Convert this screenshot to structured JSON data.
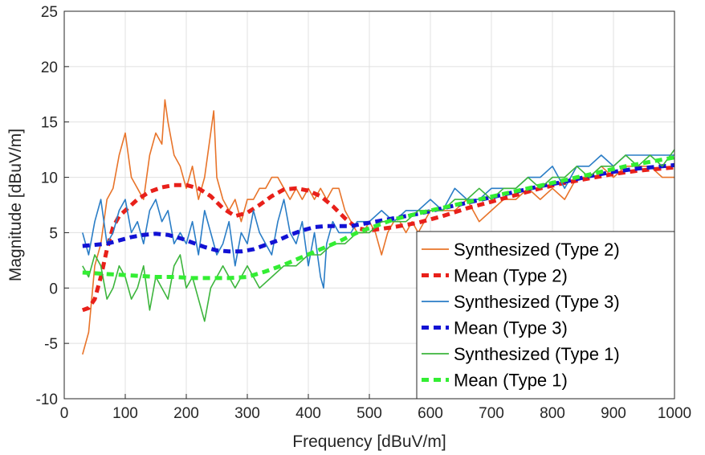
{
  "chart_data": {
    "type": "line",
    "title": "",
    "xlabel": "Frequency [dBuV/m]",
    "ylabel": "Magnitude [dBuV/m]",
    "xlim": [
      0,
      1000
    ],
    "ylim": [
      -10,
      25
    ],
    "xticks": [
      0,
      100,
      200,
      300,
      400,
      500,
      600,
      700,
      800,
      900,
      1000
    ],
    "yticks": [
      -10,
      -5,
      0,
      5,
      10,
      15,
      20,
      25
    ],
    "grid": true,
    "legend_position": "bottom-right",
    "series": [
      {
        "name": "Synthesized (Type 2)",
        "color": "#E8742A",
        "style": "solid",
        "x": [
          30,
          40,
          50,
          60,
          70,
          80,
          90,
          100,
          110,
          120,
          130,
          140,
          150,
          160,
          165,
          170,
          180,
          190,
          200,
          210,
          220,
          230,
          240,
          245,
          250,
          260,
          270,
          280,
          290,
          300,
          310,
          320,
          330,
          340,
          350,
          360,
          370,
          380,
          390,
          400,
          410,
          420,
          430,
          440,
          450,
          460,
          470,
          480,
          490,
          500,
          510,
          520,
          530,
          540,
          550,
          560,
          570,
          580,
          590,
          600,
          620,
          640,
          660,
          680,
          700,
          720,
          740,
          760,
          780,
          800,
          820,
          840,
          860,
          880,
          900,
          920,
          940,
          960,
          980,
          1000
        ],
        "values": [
          -6,
          -4,
          2,
          4,
          8,
          9,
          12,
          14,
          10,
          9,
          8,
          12,
          14,
          13,
          17,
          15,
          12,
          11,
          9,
          11,
          8,
          10,
          14,
          16,
          10,
          8,
          7,
          8,
          6,
          8,
          8,
          9,
          9,
          10,
          10,
          9,
          8,
          9,
          8,
          9,
          8,
          9,
          8,
          9,
          9,
          7,
          6,
          5,
          5,
          6,
          5,
          3,
          5,
          6,
          6,
          5,
          6,
          5,
          6,
          7,
          7,
          7,
          8,
          6,
          7,
          8,
          8,
          9,
          8,
          9,
          8,
          10,
          10,
          11,
          10,
          11,
          11,
          11,
          10,
          10
        ]
      },
      {
        "name": "Mean (Type 2)",
        "color": "#E8201A",
        "style": "dashed",
        "x": [
          30,
          40,
          50,
          60,
          70,
          80,
          90,
          100,
          120,
          140,
          160,
          180,
          200,
          220,
          240,
          260,
          280,
          300,
          320,
          340,
          360,
          380,
          400,
          420,
          440,
          460,
          480,
          500,
          540,
          580,
          620,
          660,
          700,
          740,
          780,
          820,
          860,
          900,
          940,
          980,
          1000
        ],
        "values": [
          -2,
          -1.8,
          -1,
          1,
          3.5,
          5.5,
          6.5,
          7,
          8,
          8.7,
          9.1,
          9.3,
          9.3,
          9,
          8.3,
          7.2,
          6.5,
          6.8,
          7.5,
          8.3,
          8.9,
          9,
          8.8,
          8.3,
          7.4,
          6.3,
          5.4,
          5.2,
          5.5,
          5.9,
          6.5,
          7.2,
          7.8,
          8.4,
          9,
          9.5,
          9.9,
          10.3,
          10.6,
          10.8,
          10.9
        ]
      },
      {
        "name": "Synthesized (Type 3)",
        "color": "#2A7DC6",
        "style": "solid",
        "x": [
          30,
          40,
          50,
          60,
          70,
          80,
          90,
          100,
          110,
          120,
          130,
          140,
          150,
          160,
          170,
          180,
          190,
          200,
          210,
          220,
          230,
          240,
          250,
          260,
          270,
          280,
          290,
          300,
          310,
          320,
          330,
          340,
          350,
          360,
          370,
          380,
          390,
          400,
          410,
          420,
          425,
          430,
          440,
          450,
          460,
          470,
          480,
          490,
          500,
          520,
          540,
          560,
          580,
          600,
          620,
          640,
          660,
          680,
          700,
          720,
          740,
          760,
          780,
          800,
          820,
          840,
          860,
          880,
          900,
          920,
          940,
          960,
          980,
          1000
        ],
        "values": [
          5,
          3,
          6,
          8,
          4,
          5,
          7,
          8,
          5,
          6,
          4,
          7,
          8,
          6,
          7,
          4,
          5,
          4,
          6,
          3,
          7,
          5,
          3,
          4,
          6,
          2,
          5,
          4,
          7,
          5,
          4,
          3,
          6,
          8,
          5,
          4,
          6,
          2,
          5,
          1,
          0,
          4,
          6,
          5,
          5,
          5,
          6,
          6,
          6,
          7,
          6,
          7,
          7,
          8,
          7,
          9,
          8,
          8,
          9,
          9,
          9,
          10,
          10,
          11,
          9,
          11,
          11,
          12,
          11,
          12,
          12,
          12,
          12,
          12
        ]
      },
      {
        "name": "Mean (Type 3)",
        "color": "#1212D4",
        "style": "dashed",
        "x": [
          30,
          50,
          70,
          90,
          110,
          130,
          150,
          170,
          190,
          210,
          230,
          250,
          270,
          290,
          310,
          330,
          350,
          370,
          390,
          410,
          430,
          450,
          470,
          490,
          510,
          540,
          580,
          620,
          660,
          700,
          740,
          780,
          820,
          860,
          900,
          940,
          980,
          1000
        ],
        "values": [
          3.8,
          3.9,
          4,
          4.3,
          4.6,
          4.8,
          4.9,
          4.8,
          4.5,
          4.1,
          3.7,
          3.4,
          3.3,
          3.3,
          3.5,
          3.9,
          4.3,
          4.8,
          5.2,
          5.5,
          5.6,
          5.6,
          5.6,
          5.8,
          6,
          6.3,
          6.7,
          7.2,
          7.7,
          8.2,
          8.7,
          9.2,
          9.6,
          10.1,
          10.5,
          10.8,
          11,
          11.1
        ]
      },
      {
        "name": "Synthesized (Type 1)",
        "color": "#3DB53D",
        "style": "solid",
        "x": [
          30,
          40,
          50,
          60,
          70,
          80,
          90,
          100,
          110,
          120,
          130,
          140,
          150,
          160,
          170,
          180,
          190,
          200,
          210,
          220,
          230,
          240,
          250,
          260,
          270,
          280,
          290,
          300,
          320,
          340,
          360,
          380,
          400,
          420,
          440,
          460,
          480,
          500,
          520,
          540,
          560,
          580,
          600,
          620,
          640,
          660,
          680,
          700,
          720,
          740,
          760,
          780,
          800,
          820,
          840,
          860,
          880,
          900,
          920,
          940,
          960,
          980,
          1000
        ],
        "values": [
          2,
          1,
          3,
          2,
          -1,
          0,
          2,
          1,
          -1,
          0,
          2,
          -2,
          1,
          0,
          -1,
          2,
          3,
          0,
          1,
          -1,
          -3,
          0,
          1,
          2,
          1,
          0,
          1,
          2,
          0,
          1,
          2,
          2,
          3,
          3,
          4,
          4,
          5,
          5,
          6,
          6,
          6,
          7,
          7,
          7,
          8,
          8,
          9,
          8,
          9,
          9,
          10,
          9,
          10,
          10,
          11,
          10,
          11,
          11,
          12,
          11,
          12,
          11,
          12.5
        ]
      },
      {
        "name": "Mean (Type 1)",
        "color": "#33EE33",
        "style": "dashed",
        "x": [
          30,
          60,
          90,
          120,
          150,
          180,
          210,
          240,
          270,
          300,
          330,
          360,
          390,
          420,
          450,
          480,
          510,
          540,
          570,
          600,
          640,
          680,
          720,
          760,
          800,
          840,
          880,
          920,
          960,
          1000
        ],
        "values": [
          1.4,
          1.3,
          1.2,
          1.1,
          1,
          1,
          0.9,
          0.9,
          0.9,
          1,
          1.5,
          2.1,
          2.8,
          3.5,
          4.2,
          5,
          5.6,
          6.2,
          6.6,
          7,
          7.5,
          8,
          8.5,
          9,
          9.5,
          10,
          10.5,
          11,
          11.4,
          11.8
        ]
      }
    ]
  }
}
